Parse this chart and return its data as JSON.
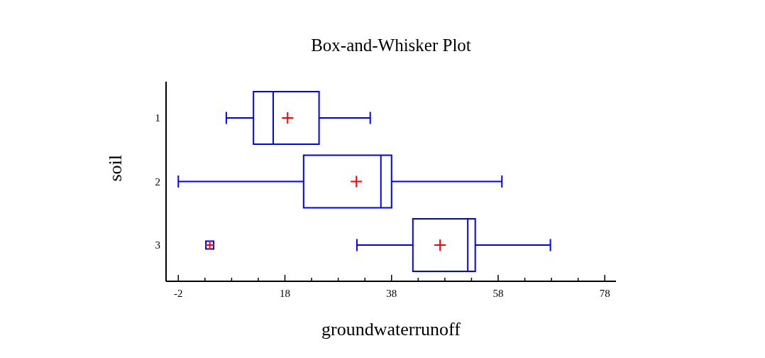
{
  "chart_data": {
    "type": "box",
    "title": "Box-and-Whisker Plot",
    "xlabel": "groundwaterrunoff",
    "ylabel": "soil",
    "orientation": "horizontal",
    "categories": [
      "1",
      "2",
      "3"
    ],
    "series": [
      {
        "color": "#0000ff",
        "boxes": [
          {
            "low": 7.0,
            "q1": 12.1,
            "median": 15.8,
            "q3": 24.4,
            "high": 34.0,
            "mean": 18.5
          },
          {
            "low": -2.0,
            "q1": 21.5,
            "median": 36.0,
            "q3": 38.0,
            "high": 58.7,
            "mean": 31.4
          },
          {
            "low": 31.5,
            "q1": 42.0,
            "median": 52.3,
            "q3": 53.7,
            "high": 67.8,
            "mean": 47.1,
            "outliers": [
              3.9
            ]
          }
        ]
      }
    ],
    "xlim": [
      -4.3,
      80.1
    ],
    "xticks": [
      -2,
      {
        "value": 3,
        "label": null
      },
      {
        "value": 8,
        "label": null
      },
      {
        "value": 13,
        "label": null
      },
      18,
      {
        "value": 23,
        "label": null
      },
      {
        "value": 28,
        "label": null
      },
      {
        "value": 33,
        "label": null
      },
      38,
      {
        "value": 43,
        "label": null
      },
      {
        "value": 48,
        "label": null
      },
      {
        "value": 53,
        "label": null
      },
      58,
      {
        "value": 63,
        "label": null
      },
      {
        "value": 68,
        "label": null
      },
      {
        "value": 73,
        "label": null
      },
      78
    ]
  }
}
